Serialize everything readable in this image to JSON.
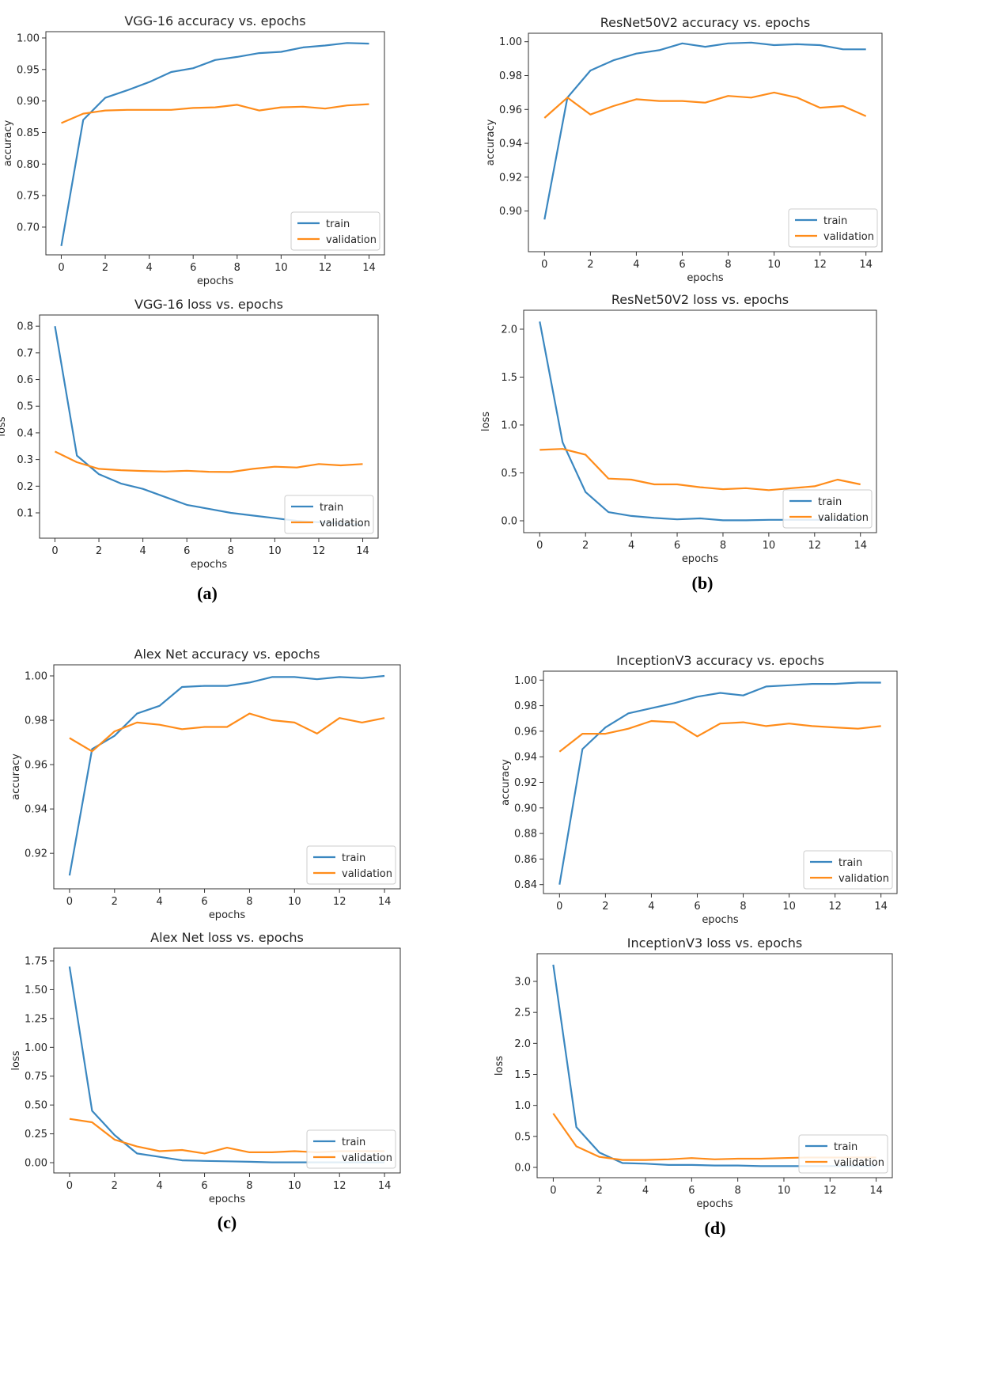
{
  "panel_labels": [
    "(a)",
    "(b)",
    "(c)",
    "(d)"
  ],
  "colors": {
    "train": "#3a87c0",
    "validation": "#ff8c1a"
  },
  "chart_data": [
    {
      "type": "line",
      "panel": "(a)",
      "title": "VGG-16 accuracy vs. epochs",
      "xlabel": "epochs",
      "ylabel": "accuracy",
      "xlim": [
        -0.7,
        14.7
      ],
      "ylim": [
        0.656,
        1.01
      ],
      "xticks": [
        0,
        2,
        4,
        6,
        8,
        10,
        12,
        14
      ],
      "yticks": [
        0.7,
        0.75,
        0.8,
        0.85,
        0.9,
        0.95,
        1.0
      ],
      "ytick_decimals": 2,
      "legend": "lower right",
      "grid": false,
      "x": [
        0,
        1,
        2,
        3,
        4,
        5,
        6,
        7,
        8,
        9,
        10,
        11,
        12,
        13,
        14
      ],
      "series": [
        {
          "name": "train",
          "values": [
            0.67,
            0.87,
            0.905,
            0.917,
            0.93,
            0.946,
            0.952,
            0.965,
            0.97,
            0.976,
            0.978,
            0.985,
            0.988,
            0.992,
            0.991
          ]
        },
        {
          "name": "validation",
          "values": [
            0.865,
            0.88,
            0.885,
            0.886,
            0.886,
            0.886,
            0.889,
            0.89,
            0.894,
            0.885,
            0.89,
            0.891,
            0.888,
            0.893,
            0.895
          ]
        }
      ]
    },
    {
      "type": "line",
      "panel": "(a)",
      "title": "VGG-16 loss vs. epochs",
      "xlabel": "epochs",
      "ylabel": "loss",
      "xlim": [
        -0.7,
        14.7
      ],
      "ylim": [
        0.005,
        0.842
      ],
      "xticks": [
        0,
        2,
        4,
        6,
        8,
        10,
        12,
        14
      ],
      "yticks": [
        0.1,
        0.2,
        0.3,
        0.4,
        0.5,
        0.6,
        0.7,
        0.8
      ],
      "ytick_decimals": 1,
      "legend": "lower right",
      "grid": false,
      "x": [
        0,
        1,
        2,
        3,
        4,
        5,
        6,
        7,
        8,
        9,
        10,
        11,
        12,
        13,
        14
      ],
      "series": [
        {
          "name": "train",
          "values": [
            0.8,
            0.315,
            0.245,
            0.21,
            0.19,
            0.16,
            0.13,
            0.115,
            0.1,
            0.09,
            0.08,
            0.07,
            0.065,
            0.06,
            0.055
          ]
        },
        {
          "name": "validation",
          "values": [
            0.33,
            0.29,
            0.265,
            0.26,
            0.257,
            0.255,
            0.258,
            0.254,
            0.253,
            0.265,
            0.273,
            0.27,
            0.283,
            0.278,
            0.283
          ]
        }
      ]
    },
    {
      "type": "line",
      "panel": "(b)",
      "title": "ResNet50V2 accuracy vs. epochs",
      "xlabel": "epochs",
      "ylabel": "accuracy",
      "xlim": [
        -0.7,
        14.7
      ],
      "ylim": [
        0.876,
        1.005
      ],
      "xticks": [
        0,
        2,
        4,
        6,
        8,
        10,
        12,
        14
      ],
      "yticks": [
        0.9,
        0.92,
        0.94,
        0.96,
        0.98,
        1.0
      ],
      "ytick_decimals": 2,
      "legend": "lower right",
      "grid": false,
      "x": [
        0,
        1,
        2,
        3,
        4,
        5,
        6,
        7,
        8,
        9,
        10,
        11,
        12,
        13,
        14
      ],
      "series": [
        {
          "name": "train",
          "values": [
            0.895,
            0.967,
            0.983,
            0.989,
            0.993,
            0.995,
            0.999,
            0.997,
            0.999,
            0.9995,
            0.998,
            0.9985,
            0.998,
            0.9955,
            0.9955
          ]
        },
        {
          "name": "validation",
          "values": [
            0.955,
            0.967,
            0.957,
            0.962,
            0.966,
            0.965,
            0.965,
            0.964,
            0.968,
            0.967,
            0.97,
            0.967,
            0.961,
            0.962,
            0.956
          ]
        }
      ]
    },
    {
      "type": "line",
      "panel": "(b)",
      "title": "ResNet50V2 loss vs. epochs",
      "xlabel": "epochs",
      "ylabel": "loss",
      "xlim": [
        -0.7,
        14.7
      ],
      "ylim": [
        -0.124,
        2.198
      ],
      "xticks": [
        0,
        2,
        4,
        6,
        8,
        10,
        12,
        14
      ],
      "yticks": [
        0.0,
        0.5,
        1.0,
        1.5,
        2.0
      ],
      "ytick_decimals": 1,
      "legend": "lower right",
      "grid": false,
      "x": [
        0,
        1,
        2,
        3,
        4,
        5,
        6,
        7,
        8,
        9,
        10,
        11,
        12,
        13,
        14
      ],
      "series": [
        {
          "name": "train",
          "values": [
            2.08,
            0.82,
            0.3,
            0.09,
            0.05,
            0.03,
            0.015,
            0.025,
            0.005,
            0.005,
            0.01,
            0.01,
            0.01,
            0.01,
            0.01
          ]
        },
        {
          "name": "validation",
          "values": [
            0.74,
            0.75,
            0.69,
            0.44,
            0.43,
            0.38,
            0.38,
            0.35,
            0.33,
            0.34,
            0.32,
            0.34,
            0.36,
            0.43,
            0.38
          ]
        }
      ]
    },
    {
      "type": "line",
      "panel": "(c)",
      "title": "Alex Net accuracy vs. epochs",
      "xlabel": "epochs",
      "ylabel": "accuracy",
      "xlim": [
        -0.7,
        14.7
      ],
      "ylim": [
        0.904,
        1.005
      ],
      "xticks": [
        0,
        2,
        4,
        6,
        8,
        10,
        12,
        14
      ],
      "yticks": [
        0.92,
        0.94,
        0.96,
        0.98,
        1.0
      ],
      "ytick_decimals": 2,
      "legend": "lower right",
      "grid": false,
      "x": [
        0,
        1,
        2,
        3,
        4,
        5,
        6,
        7,
        8,
        9,
        10,
        11,
        12,
        13,
        14
      ],
      "series": [
        {
          "name": "train",
          "values": [
            0.91,
            0.967,
            0.973,
            0.983,
            0.9865,
            0.995,
            0.9955,
            0.9955,
            0.997,
            0.9995,
            0.9995,
            0.9985,
            0.9995,
            0.999,
            1.0
          ]
        },
        {
          "name": "validation",
          "values": [
            0.972,
            0.966,
            0.975,
            0.979,
            0.978,
            0.976,
            0.977,
            0.977,
            0.983,
            0.98,
            0.979,
            0.974,
            0.981,
            0.979,
            0.981
          ]
        }
      ]
    },
    {
      "type": "line",
      "panel": "(c)",
      "title": "Alex Net loss vs. epochs",
      "xlabel": "epochs",
      "ylabel": "loss",
      "xlim": [
        -0.7,
        14.7
      ],
      "ylim": [
        -0.089,
        1.86
      ],
      "xticks": [
        0,
        2,
        4,
        6,
        8,
        10,
        12,
        14
      ],
      "yticks": [
        0.0,
        0.25,
        0.5,
        0.75,
        1.0,
        1.25,
        1.5,
        1.75
      ],
      "ytick_decimals": 2,
      "legend": "lower right",
      "grid": false,
      "x": [
        0,
        1,
        2,
        3,
        4,
        5,
        6,
        7,
        8,
        9,
        10,
        11,
        12,
        13,
        14
      ],
      "series": [
        {
          "name": "train",
          "values": [
            1.7,
            0.45,
            0.24,
            0.08,
            0.05,
            0.02,
            0.015,
            0.012,
            0.008,
            0.003,
            0.003,
            0.003,
            0.003,
            0.003,
            0.003
          ]
        },
        {
          "name": "validation",
          "values": [
            0.38,
            0.35,
            0.2,
            0.14,
            0.1,
            0.11,
            0.08,
            0.13,
            0.09,
            0.09,
            0.1,
            0.09,
            0.1,
            0.1,
            0.1
          ]
        }
      ]
    },
    {
      "type": "line",
      "panel": "(d)",
      "title": "InceptionV3 accuracy vs. epochs",
      "xlabel": "epochs",
      "ylabel": "accuracy",
      "xlim": [
        -0.7,
        14.7
      ],
      "ylim": [
        0.833,
        1.007
      ],
      "xticks": [
        0,
        2,
        4,
        6,
        8,
        10,
        12,
        14
      ],
      "yticks": [
        0.84,
        0.86,
        0.88,
        0.9,
        0.92,
        0.94,
        0.96,
        0.98,
        1.0
      ],
      "ytick_decimals": 2,
      "legend": "lower right",
      "grid": false,
      "x": [
        0,
        1,
        2,
        3,
        4,
        5,
        6,
        7,
        8,
        9,
        10,
        11,
        12,
        13,
        14
      ],
      "series": [
        {
          "name": "train",
          "values": [
            0.84,
            0.946,
            0.963,
            0.974,
            0.978,
            0.982,
            0.987,
            0.99,
            0.988,
            0.995,
            0.996,
            0.997,
            0.997,
            0.998,
            0.998
          ]
        },
        {
          "name": "validation",
          "values": [
            0.944,
            0.958,
            0.958,
            0.962,
            0.968,
            0.967,
            0.956,
            0.966,
            0.967,
            0.964,
            0.966,
            0.964,
            0.963,
            0.962,
            0.964
          ]
        }
      ]
    },
    {
      "type": "line",
      "panel": "(d)",
      "title": "InceptionV3 loss vs. epochs",
      "xlabel": "epochs",
      "ylabel": "loss",
      "xlim": [
        -0.7,
        14.7
      ],
      "ylim": [
        -0.166,
        3.447
      ],
      "xticks": [
        0,
        2,
        4,
        6,
        8,
        10,
        12,
        14
      ],
      "yticks": [
        0.0,
        0.5,
        1.0,
        1.5,
        2.0,
        2.5,
        3.0
      ],
      "ytick_decimals": 1,
      "legend": "lower right",
      "grid": false,
      "x": [
        0,
        1,
        2,
        3,
        4,
        5,
        6,
        7,
        8,
        9,
        10,
        11,
        12,
        13,
        14
      ],
      "series": [
        {
          "name": "train",
          "values": [
            3.27,
            0.65,
            0.24,
            0.07,
            0.06,
            0.04,
            0.04,
            0.03,
            0.03,
            0.02,
            0.02,
            0.02,
            0.02,
            0.02,
            0.02
          ]
        },
        {
          "name": "validation",
          "values": [
            0.87,
            0.34,
            0.17,
            0.12,
            0.12,
            0.13,
            0.15,
            0.13,
            0.14,
            0.14,
            0.15,
            0.16,
            0.16,
            0.16,
            0.16
          ]
        }
      ]
    }
  ]
}
